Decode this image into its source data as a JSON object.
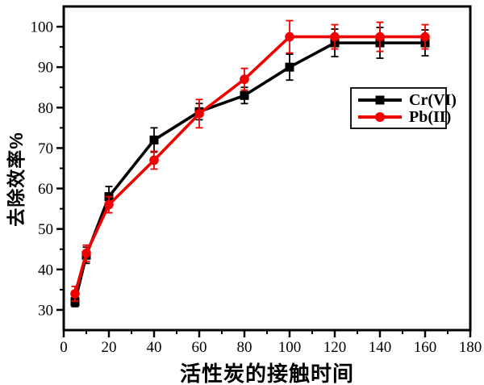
{
  "chart_data": {
    "type": "line",
    "title": "",
    "xlabel": "活性炭的接触时间",
    "ylabel": "去除效率%",
    "x": [
      5,
      10,
      20,
      40,
      60,
      80,
      100,
      120,
      140,
      160
    ],
    "series": [
      {
        "name": "Cr(VI)",
        "color": "#000000",
        "marker": "square",
        "values": [
          32,
          43.5,
          58,
          72,
          79,
          83,
          90,
          96,
          96,
          96
        ],
        "errors": [
          1.2,
          2,
          2.5,
          3,
          2,
          2,
          3.2,
          3.4,
          3.8,
          3.2
        ]
      },
      {
        "name": "Pb(II)",
        "color": "#f00000",
        "marker": "circle",
        "values": [
          34,
          44,
          56,
          67,
          78.5,
          87,
          97.5,
          97.5,
          97.5,
          97.5
        ],
        "errors": [
          1.8,
          2,
          2,
          2.2,
          3.5,
          2.7,
          4,
          3,
          3.6,
          3
        ]
      }
    ],
    "xlim": [
      0,
      180
    ],
    "ylim": [
      25,
      105
    ],
    "x_ticks": [
      0,
      20,
      40,
      60,
      80,
      100,
      120,
      140,
      160,
      180
    ],
    "y_ticks": [
      30,
      40,
      50,
      60,
      70,
      80,
      90,
      100
    ],
    "x_minor_step": 10,
    "y_minor_step": 5,
    "grid": false,
    "legend_position": "right-middle",
    "frame_color": "#000000",
    "background_color": "#ffffff"
  }
}
